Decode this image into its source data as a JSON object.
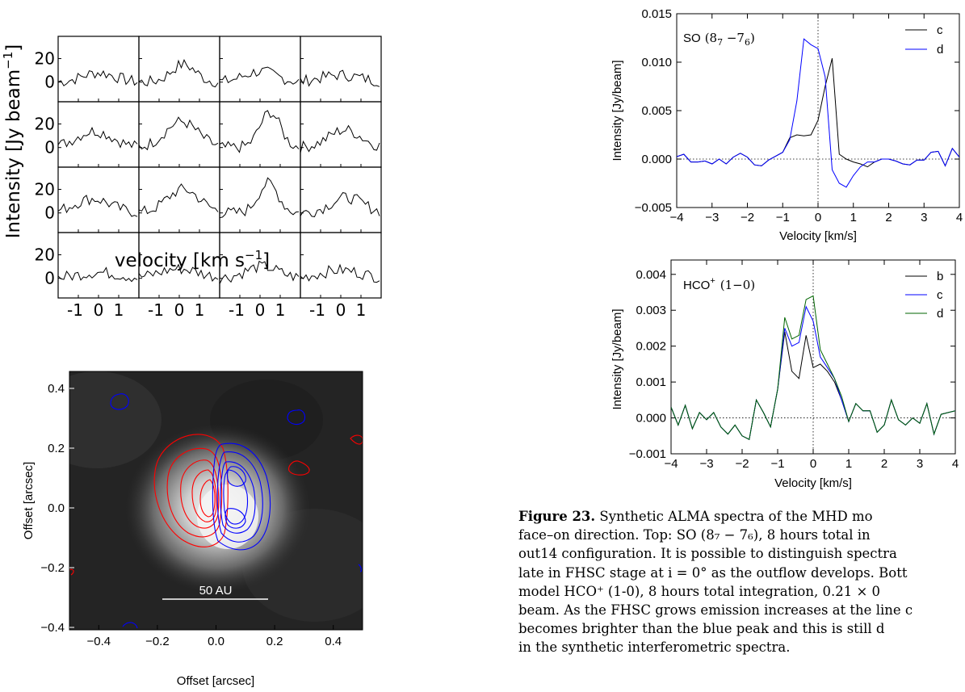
{
  "velocity_grid": {
    "ylabel": "Intensity [Jy beam$^{-1}$]",
    "ylabel_main": "Intensity [Jy beam",
    "ylabel_sup": "−1",
    "ylabel_end": "]",
    "xlabel_main": "velocity [km s",
    "xlabel_sup": "−1",
    "xlabel_end": "]",
    "yticks": [
      "20",
      "0"
    ],
    "xticks": [
      "-1",
      "0",
      "1"
    ]
  },
  "contour_map": {
    "xlabel": "Offset [arcsec]",
    "ylabel": "Offset [arcsec]",
    "xticks": [
      "−0.4",
      "−0.2",
      "0.0",
      "0.2",
      "0.4"
    ],
    "yticks": [
      "0.4",
      "0.2",
      "0.0",
      "−0.2",
      "−0.4"
    ],
    "scalebar": "50 AU"
  },
  "so_plot": {
    "label": "SO",
    "transition": "(8",
    "sub1": "7",
    "mid": " −7",
    "sub2": "6",
    "close": ")",
    "xlabel": "Velocity [km/s]",
    "ylabel": "Intensity [Jy/beam]",
    "yticks": [
      "0.015",
      "0.010",
      "0.005",
      "0.000",
      "−0.005"
    ],
    "xticks": [
      "−4",
      "−3",
      "−2",
      "−1",
      "0",
      "1",
      "2",
      "3",
      "4"
    ],
    "legend": [
      "c",
      "d"
    ]
  },
  "hco_plot": {
    "label": "HCO",
    "sup": "+",
    "transition": "(1−0)",
    "xlabel": "Velocity [km/s]",
    "ylabel": "Intensity [Jy/beam]",
    "yticks": [
      "0.004",
      "0.003",
      "0.002",
      "0.001",
      "0.000",
      "−0.001"
    ],
    "xticks": [
      "−4",
      "−3",
      "−2",
      "−1",
      "0",
      "1",
      "2",
      "3",
      "4"
    ],
    "legend": [
      "b",
      "c",
      "d"
    ]
  },
  "caption": {
    "fig": "Figure 23.",
    "line1": " Synthetic ALMA spectra of the MHD mo",
    "line2": "face–on direction.  Top: SO (8₇ − 7₆), 8 hours total in",
    "line3": "out14 configuration. It is possible to distinguish spectra",
    "line4": "late in FHSC stage at i = 0° as the outflow develops. Bott",
    "line5": "model HCO⁺ (1-0), 8 hours total integration, 0.21 × 0",
    "line6": "beam. As the FHSC grows emission increases at the line c",
    "line7": "becomes brighter than the blue peak and this is still d",
    "line8": "in the synthetic interferometric spectra."
  },
  "colors": {
    "c": "#000000",
    "d": "#0000ff",
    "d_hco": "#006400",
    "red": "#ff0000",
    "blue": "#0000ff"
  },
  "chart_data": [
    {
      "type": "line",
      "xlabel": "Velocity [km/s]",
      "ylabel": "Intensity [Jy/beam]",
      "xlim": [
        -4,
        4
      ],
      "ylim": [
        -0.005,
        0.015
      ],
      "series": [
        {
          "name": "c",
          "x": [
            -4.2,
            -3.8,
            -3.6,
            -3.4,
            -3.2,
            -3.0,
            -2.8,
            -2.6,
            -2.4,
            -2.2,
            -2.0,
            -1.8,
            -1.6,
            -1.4,
            -1.2,
            -1.0,
            -0.8,
            -0.6,
            -0.4,
            -0.2,
            0.0,
            0.2,
            0.4,
            0.6,
            0.8,
            1.0,
            1.2,
            1.4,
            1.6,
            1.8,
            2.0,
            2.2,
            2.4,
            2.6,
            2.8,
            3.0,
            3.2,
            3.4,
            3.6,
            3.8,
            4.0
          ],
          "y": [
            0.0,
            0.0005,
            -0.0003,
            -0.0003,
            -0.0002,
            -0.0005,
            0.0,
            -0.0005,
            0.0002,
            0.0006,
            0.0002,
            -0.0006,
            -0.0007,
            -0.0001,
            0.0003,
            0.0007,
            0.0022,
            0.0025,
            0.0024,
            0.0025,
            0.004,
            0.0075,
            0.0104,
            0.0005,
            0.0,
            -0.0003,
            -0.0005,
            -0.0008,
            -0.0003,
            0.0,
            0.0,
            -0.0002,
            -0.0005,
            -0.0006,
            -0.0001,
            -0.0001,
            0.0007,
            0.0008,
            -0.0007,
            0.0011,
            0.0002
          ]
        },
        {
          "name": "d",
          "x": [
            -4.2,
            -3.8,
            -3.6,
            -3.4,
            -3.2,
            -3.0,
            -2.8,
            -2.6,
            -2.4,
            -2.2,
            -2.0,
            -1.8,
            -1.6,
            -1.4,
            -1.2,
            -1.0,
            -0.8,
            -0.6,
            -0.4,
            -0.2,
            0.0,
            0.2,
            0.4,
            0.6,
            0.8,
            1.0,
            1.2,
            1.4,
            1.6,
            1.8,
            2.0,
            2.2,
            2.4,
            2.6,
            2.8,
            3.0,
            3.2,
            3.4,
            3.6,
            3.8,
            4.0
          ],
          "y": [
            0.0,
            0.0005,
            -0.0003,
            -0.0003,
            -0.0002,
            -0.0005,
            0.0,
            -0.0005,
            0.0002,
            0.0006,
            0.0002,
            -0.0006,
            -0.0007,
            -0.0001,
            0.0003,
            0.0007,
            0.002,
            0.006,
            0.0124,
            0.0118,
            0.0114,
            0.0085,
            -0.0011,
            -0.0025,
            -0.0029,
            -0.0017,
            -0.0008,
            -0.0003,
            -0.0003,
            0.0,
            0.0,
            -0.0002,
            -0.0005,
            -0.0006,
            -0.0001,
            -0.0001,
            0.0007,
            0.0008,
            -0.0007,
            0.0011,
            0.0002
          ]
        }
      ]
    },
    {
      "type": "line",
      "xlabel": "Velocity [km/s]",
      "ylabel": "Intensity [Jy/beam]",
      "xlim": [
        -4,
        4
      ],
      "ylim": [
        -0.001,
        0.0044
      ],
      "series": [
        {
          "name": "b",
          "x": [
            -4.0,
            -3.8,
            -3.6,
            -3.4,
            -3.2,
            -3.0,
            -2.8,
            -2.6,
            -2.4,
            -2.2,
            -2.0,
            -1.8,
            -1.6,
            -1.4,
            -1.2,
            -1.0,
            -0.8,
            -0.6,
            -0.4,
            -0.2,
            0.0,
            0.2,
            0.4,
            0.6,
            0.8,
            1.0,
            1.2,
            1.4,
            1.6,
            1.8,
            2.0,
            2.2,
            2.4,
            2.6,
            2.8,
            3.0,
            3.2,
            3.4,
            3.6,
            3.8,
            4.0,
            4.2
          ],
          "y": [
            0.0003,
            -0.0002,
            0.00035,
            -0.0003,
            0.00015,
            -5e-05,
            0.00015,
            -0.00025,
            -0.00045,
            -0.0002,
            -0.0005,
            -0.0006,
            0.0005,
            0.00015,
            -0.00025,
            0.0008,
            0.0024,
            0.0013,
            0.0011,
            0.0023,
            0.0014,
            0.0015,
            0.0013,
            0.001,
            0.0005,
            -0.0001,
            0.0004,
            0.0002,
            0.0002,
            -0.0004,
            -0.0002,
            0.0005,
            -5e-05,
            -0.0002,
            0.0,
            -0.00015,
            0.0004,
            -0.00045,
            0.0001,
            0.00015,
            0.0002,
            0.0002
          ]
        },
        {
          "name": "c",
          "x": [
            -4.0,
            -3.8,
            -3.6,
            -3.4,
            -3.2,
            -3.0,
            -2.8,
            -2.6,
            -2.4,
            -2.2,
            -2.0,
            -1.8,
            -1.6,
            -1.4,
            -1.2,
            -1.0,
            -0.8,
            -0.6,
            -0.4,
            -0.2,
            0.0,
            0.2,
            0.4,
            0.6,
            0.8,
            1.0,
            1.2,
            1.4,
            1.6,
            1.8,
            2.0,
            2.2,
            2.4,
            2.6,
            2.8,
            3.0,
            3.2,
            3.4,
            3.6,
            3.8,
            4.0,
            4.2
          ],
          "y": [
            0.0003,
            -0.0002,
            0.00035,
            -0.0003,
            0.00015,
            -5e-05,
            0.00015,
            -0.00025,
            -0.00045,
            -0.0002,
            -0.0005,
            -0.0006,
            0.0005,
            0.00015,
            -0.00025,
            0.0008,
            0.0025,
            0.002,
            0.0021,
            0.0031,
            0.0027,
            0.0017,
            0.0014,
            0.0011,
            0.0005,
            -0.0001,
            0.0004,
            0.0002,
            0.0002,
            -0.0004,
            -0.0002,
            0.0005,
            -5e-05,
            -0.0002,
            0.0,
            -0.00015,
            0.0004,
            -0.00045,
            0.0001,
            0.00015,
            0.0002,
            0.0002
          ]
        },
        {
          "name": "d",
          "x": [
            -4.0,
            -3.8,
            -3.6,
            -3.4,
            -3.2,
            -3.0,
            -2.8,
            -2.6,
            -2.4,
            -2.2,
            -2.0,
            -1.8,
            -1.6,
            -1.4,
            -1.2,
            -1.0,
            -0.8,
            -0.6,
            -0.4,
            -0.2,
            0.0,
            0.2,
            0.4,
            0.6,
            0.8,
            1.0,
            1.2,
            1.4,
            1.6,
            1.8,
            2.0,
            2.2,
            2.4,
            2.6,
            2.8,
            3.0,
            3.2,
            3.4,
            3.6,
            3.8,
            4.0,
            4.2
          ],
          "y": [
            0.0003,
            -0.0002,
            0.00035,
            -0.0003,
            0.00015,
            -5e-05,
            0.00015,
            -0.00025,
            -0.00045,
            -0.0002,
            -0.0005,
            -0.0006,
            0.0005,
            0.00015,
            -0.00025,
            0.0008,
            0.0028,
            0.0022,
            0.0023,
            0.0033,
            0.0034,
            0.0019,
            0.0015,
            0.0011,
            0.0006,
            -0.0001,
            0.0004,
            0.0002,
            0.0002,
            -0.0004,
            -0.0002,
            0.0005,
            -5e-05,
            -0.0002,
            0.0,
            -0.00015,
            0.0004,
            -0.00045,
            0.0001,
            0.00015,
            0.0002,
            0.0002
          ]
        }
      ]
    }
  ]
}
